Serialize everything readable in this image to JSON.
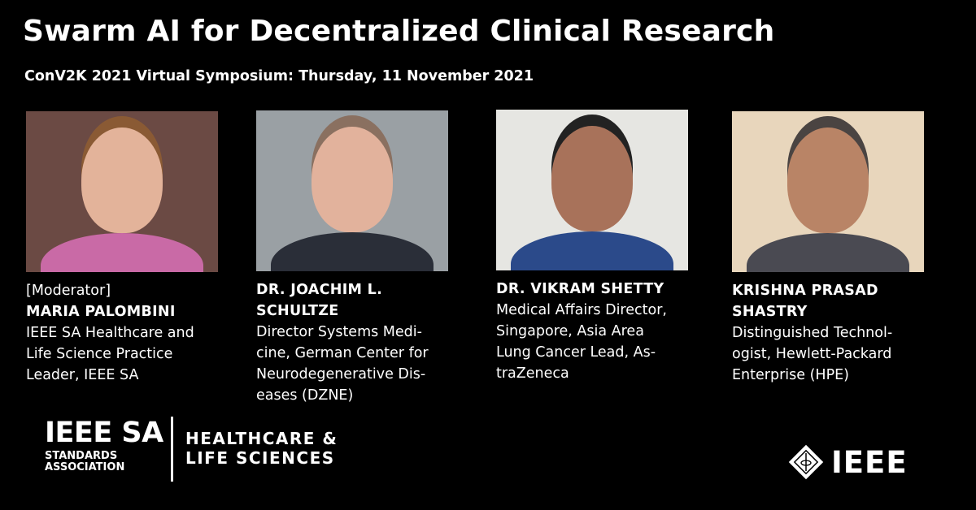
{
  "header": {
    "title": "Swarm AI for Decentralized Clinical Research",
    "subtitle": "ConV2K 2021 Virtual Symposium: Thursday, 11 November 2021"
  },
  "speakers": [
    {
      "role": "[Moderator]",
      "name_lines": [
        "MARIA PALOMBINI"
      ],
      "desc_lines": [
        "IEEE SA Healthcare and",
        "Life Science Practice",
        "Leader, IEEE SA"
      ],
      "photo_bg": "#6b4a44",
      "hair": "#8a5a34",
      "skin": "#e3b39a",
      "shirt": "#c96aa6"
    },
    {
      "role": "",
      "name_lines": [
        "DR. JOACHIM L.",
        "SCHULTZE"
      ],
      "desc_lines": [
        "Director Systems Medi-",
        "cine, German Center for",
        "Neurodegenerative Dis-",
        "eases (DZNE)"
      ],
      "photo_bg": "#9aa0a4",
      "hair": "#8a7060",
      "skin": "#e2b29c",
      "shirt": "#2a2e38"
    },
    {
      "role": "",
      "name_lines": [
        "DR. VIKRAM SHETTY"
      ],
      "desc_lines": [
        "Medical Affairs Director,",
        "Singapore, Asia Area",
        "Lung Cancer Lead, As-",
        "traZeneca"
      ],
      "photo_bg": "#e6e6e2",
      "hair": "#222",
      "skin": "#a8725a",
      "shirt": "#2b4a8a"
    },
    {
      "role": "",
      "name_lines": [
        "KRISHNA PRASAD",
        "SHASTRY"
      ],
      "desc_lines": [
        "Distinguished Technol-",
        "ogist, Hewlett-Packard",
        "Enterprise (HPE)"
      ],
      "photo_bg": "#e8d6bc",
      "hair": "#4a4442",
      "skin": "#b98466",
      "shirt": "#4a4a52"
    }
  ],
  "footer": {
    "sa_logo": {
      "big": "IEEE SA",
      "small_1": "STANDARDS",
      "small_2": "ASSOCIATION"
    },
    "program_1": "HEALTHCARE &",
    "program_2": "LIFE SCIENCES",
    "ieee_logo": "IEEE"
  }
}
